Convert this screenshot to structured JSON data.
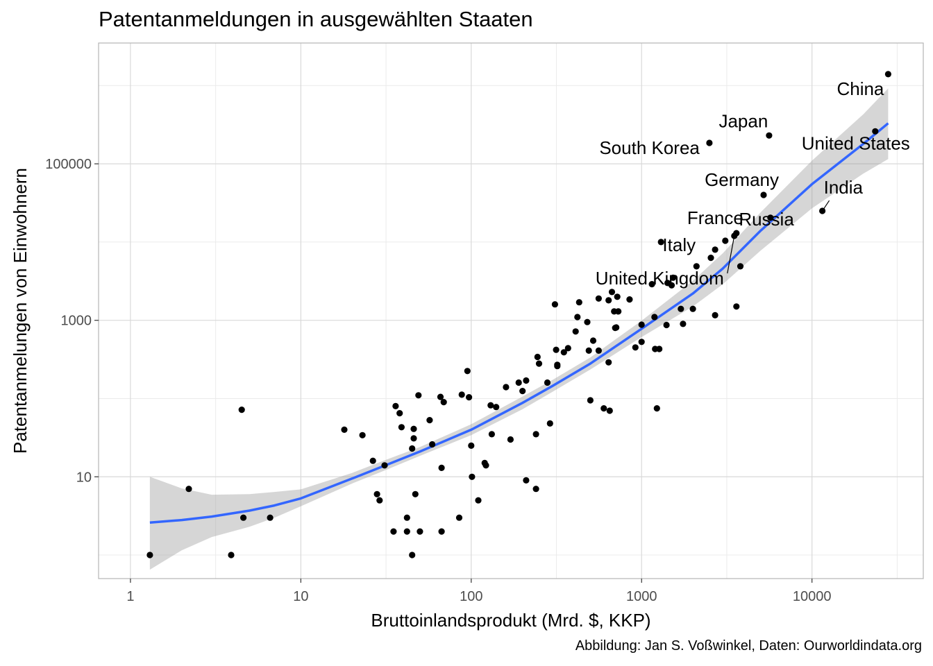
{
  "title": "Patentanmeldungen in ausgewählten Staaten",
  "caption": "Abbildung: Jan S. Voßwinkel, Daten: Ourworldindata.org",
  "colors": {
    "panel_border": "#b3b3b3",
    "grid_major": "#d9d9d9",
    "grid_minor": "#ebebeb",
    "point": "#000000",
    "smooth_line": "#3366ff",
    "confidence_band": "#999999"
  },
  "chart_data": {
    "type": "scatter",
    "title": "Patentanmeldungen in ausgewählten Staaten",
    "xlabel": "Bruttoinlandsprodukt (Mrd. $, KKP)",
    "ylabel": "Patentanmelungen von Einwohnern",
    "x_scale": "log10",
    "y_scale": "log10",
    "xlim": [
      0.65,
      45000
    ],
    "ylim": [
      0.5,
      3500000
    ],
    "x_ticks": [
      1,
      10,
      100,
      1000,
      10000
    ],
    "x_tick_labels": [
      "1",
      "10",
      "100",
      "1000",
      "10000"
    ],
    "y_ticks": [
      10,
      1000,
      100000
    ],
    "y_tick_labels": [
      "10",
      "1000",
      "100000"
    ],
    "grid": true,
    "legend": "none",
    "points": [
      [
        1.3,
        1
      ],
      [
        2.2,
        7
      ],
      [
        3.9,
        1
      ],
      [
        4.5,
        72
      ],
      [
        4.6,
        3
      ],
      [
        6.6,
        3
      ],
      [
        18,
        40
      ],
      [
        23,
        34
      ],
      [
        26.5,
        16
      ],
      [
        28,
        6
      ],
      [
        29,
        5
      ],
      [
        31,
        14
      ],
      [
        35,
        2
      ],
      [
        36,
        80
      ],
      [
        38,
        65
      ],
      [
        39,
        43
      ],
      [
        42,
        3
      ],
      [
        42,
        2
      ],
      [
        45,
        1
      ],
      [
        45,
        23
      ],
      [
        46,
        31
      ],
      [
        46,
        41
      ],
      [
        47,
        6
      ],
      [
        49,
        110
      ],
      [
        50,
        2
      ],
      [
        57,
        53
      ],
      [
        59,
        26
      ],
      [
        66,
        105
      ],
      [
        67,
        13
      ],
      [
        67,
        2
      ],
      [
        69,
        90
      ],
      [
        85,
        3
      ],
      [
        88,
        112
      ],
      [
        95,
        225
      ],
      [
        97,
        104
      ],
      [
        100,
        25
      ],
      [
        101,
        10
      ],
      [
        110,
        5
      ],
      [
        120,
        15
      ],
      [
        122,
        14
      ],
      [
        130,
        82
      ],
      [
        132,
        35
      ],
      [
        140,
        78
      ],
      [
        160,
        140
      ],
      [
        170,
        30
      ],
      [
        190,
        160
      ],
      [
        200,
        125
      ],
      [
        210,
        170
      ],
      [
        210,
        9
      ],
      [
        240,
        35
      ],
      [
        240,
        7
      ],
      [
        245,
        340
      ],
      [
        250,
        280
      ],
      [
        280,
        160
      ],
      [
        290,
        48
      ],
      [
        310,
        1600
      ],
      [
        315,
        420
      ],
      [
        320,
        270
      ],
      [
        320,
        260
      ],
      [
        350,
        390
      ],
      [
        370,
        440
      ],
      [
        410,
        720
      ],
      [
        420,
        1100
      ],
      [
        430,
        1700
      ],
      [
        480,
        950
      ],
      [
        490,
        410
      ],
      [
        500,
        95
      ],
      [
        520,
        550
      ],
      [
        560,
        410
      ],
      [
        560,
        1900
      ],
      [
        600,
        75
      ],
      [
        640,
        290
      ],
      [
        640,
        1800
      ],
      [
        650,
        70
      ],
      [
        670,
        2300
      ],
      [
        690,
        1300
      ],
      [
        700,
        800
      ],
      [
        710,
        810
      ],
      [
        720,
        2000
      ],
      [
        730,
        1300
      ],
      [
        850,
        1850
      ],
      [
        920,
        450
      ],
      [
        1000,
        530
      ],
      [
        1000,
        880
      ],
      [
        1150,
        2900
      ],
      [
        1190,
        1100
      ],
      [
        1200,
        430
      ],
      [
        1230,
        75
      ],
      [
        1270,
        430
      ],
      [
        1300,
        10000
      ],
      [
        1400,
        870
      ],
      [
        1420,
        3000
      ],
      [
        1500,
        2800
      ],
      [
        1530,
        3500
      ],
      [
        1700,
        1400
      ],
      [
        1750,
        900
      ],
      [
        2000,
        1400
      ],
      [
        2100,
        4900
      ],
      [
        2550,
        6300
      ],
      [
        2700,
        8000
      ],
      [
        2700,
        1160
      ],
      [
        3100,
        10400
      ],
      [
        3500,
        12000
      ],
      [
        3600,
        13000
      ],
      [
        3600,
        1500
      ],
      [
        3800,
        4900
      ],
      [
        2500,
        185000
      ],
      [
        5200,
        40000
      ],
      [
        5600,
        230000
      ],
      [
        5700,
        20500
      ],
      [
        11500,
        25000
      ],
      [
        23500,
        260000
      ],
      [
        28000,
        1400000
      ]
    ],
    "labels": [
      {
        "text": "China",
        "x": 28000,
        "y": 1400000
      },
      {
        "text": "Japan",
        "x": 5600,
        "y": 230000
      },
      {
        "text": "South Korea",
        "x": 2500,
        "y": 185000
      },
      {
        "text": "United States",
        "x": 23500,
        "y": 260000
      },
      {
        "text": "Germany",
        "x": 5200,
        "y": 40000
      },
      {
        "text": "India",
        "x": 11500,
        "y": 25000
      },
      {
        "text": "France",
        "x": 3600,
        "y": 13000
      },
      {
        "text": "Russia",
        "x": 5700,
        "y": 20500
      },
      {
        "text": "Italy",
        "x": 2700,
        "y": 8000
      },
      {
        "text": "United Kingdom",
        "x": 3500,
        "y": 12000
      }
    ],
    "smooth": {
      "method": "loess",
      "x": [
        1.3,
        2,
        3,
        5,
        7,
        10,
        20,
        30,
        50,
        100,
        200,
        300,
        500,
        1000,
        2000,
        3000,
        5000,
        10000,
        20000,
        28000
      ],
      "y": [
        2.6,
        2.8,
        3.1,
        3.7,
        4.3,
        5.3,
        9.5,
        13.5,
        21,
        40,
        88,
        145,
        280,
        780,
        2200,
        4600,
        14000,
        55000,
        180000,
        330000
      ],
      "lower": [
        0.65,
        1.15,
        1.7,
        2.3,
        3.0,
        4.2,
        8.2,
        11.7,
        18.5,
        34,
        73,
        122,
        235,
        610,
        1500,
        2900,
        7800,
        27000,
        75000,
        115000
      ],
      "upper": [
        10,
        7.1,
        5.9,
        6.0,
        6.4,
        6.9,
        11.2,
        15.8,
        24,
        47,
        106,
        173,
        335,
        990,
        3200,
        7200,
        24000,
        110000,
        430000,
        920000
      ]
    }
  }
}
